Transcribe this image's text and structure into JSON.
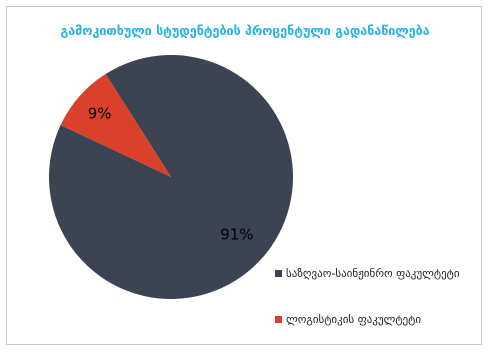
{
  "chart_data": {
    "type": "pie",
    "title": "გამოკითხული სტუდენტების პროცენტული გადანაწილება",
    "categories": [
      "საზღვაო-საინჟინრო ფაკულტეტი",
      "ლოგისტიკის ფაკულტეტი"
    ],
    "values": [
      91,
      9
    ],
    "data_labels": [
      "91%",
      "9%"
    ],
    "colors": [
      "#3c4352",
      "#d9412b"
    ],
    "label_colors": [
      "#000000",
      "#000000"
    ],
    "legend_position": "right"
  }
}
